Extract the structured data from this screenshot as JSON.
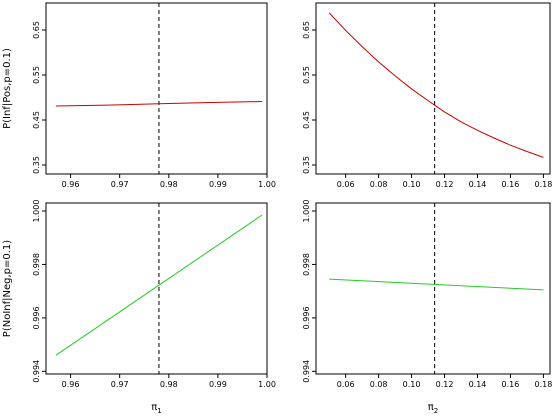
{
  "chart_data": [
    {
      "type": "line",
      "panel": "top-left",
      "xlabel": "",
      "ylabel": "P(Inf|Pos,p=0.1)",
      "xlim": [
        0.955,
        1.0
      ],
      "ylim": [
        0.33,
        0.71
      ],
      "xticks": [
        "0.96",
        "0.97",
        "0.98",
        "0.99",
        "1.00"
      ],
      "xtick_values": [
        0.96,
        0.97,
        0.98,
        0.99,
        1.0
      ],
      "yticks": [
        "0.35",
        "0.45",
        "0.55",
        "0.65"
      ],
      "ytick_values": [
        0.35,
        0.45,
        0.55,
        0.65
      ],
      "vline": 0.978,
      "series": [
        {
          "color": "#cc0000",
          "x": [
            0.957,
            0.9675,
            0.978,
            0.9885,
            0.999
          ],
          "y": [
            0.481,
            0.483,
            0.486,
            0.489,
            0.491
          ]
        }
      ]
    },
    {
      "type": "line",
      "panel": "top-right",
      "xlabel": "",
      "ylabel": "",
      "xlim": [
        0.042,
        0.184
      ],
      "ylim": [
        0.33,
        0.71
      ],
      "xticks": [
        "0.06",
        "0.08",
        "0.10",
        "0.12",
        "0.14",
        "0.16",
        "0.18"
      ],
      "xtick_values": [
        0.06,
        0.08,
        0.1,
        0.12,
        0.14,
        0.16,
        0.18
      ],
      "yticks": [
        "0.35",
        "0.45",
        "0.55",
        "0.65"
      ],
      "ytick_values": [
        0.35,
        0.45,
        0.55,
        0.65
      ],
      "vline": 0.114,
      "series": [
        {
          "color": "#cc0000",
          "x": [
            0.05,
            0.06,
            0.07,
            0.08,
            0.09,
            0.1,
            0.11,
            0.114,
            0.12,
            0.13,
            0.14,
            0.15,
            0.16,
            0.17,
            0.18
          ],
          "y": [
            0.688,
            0.649,
            0.613,
            0.579,
            0.548,
            0.519,
            0.493,
            0.483,
            0.468,
            0.446,
            0.427,
            0.41,
            0.394,
            0.38,
            0.367
          ]
        }
      ]
    },
    {
      "type": "line",
      "panel": "bottom-left",
      "xlabel": "π1",
      "ylabel": "P(NoInf|Neg,p=0.1)",
      "xlim": [
        0.955,
        1.0
      ],
      "ylim": [
        0.9939,
        1.0003
      ],
      "xticks": [
        "0.96",
        "0.97",
        "0.98",
        "0.99",
        "1.00"
      ],
      "xtick_values": [
        0.96,
        0.97,
        0.98,
        0.99,
        1.0
      ],
      "yticks": [
        "0.994",
        "0.996",
        "0.998",
        "1.000"
      ],
      "ytick_values": [
        0.994,
        0.996,
        0.998,
        1.0
      ],
      "vline": 0.978,
      "series": [
        {
          "color": "#22cc22",
          "x": [
            0.957,
            0.999
          ],
          "y": [
            0.9946,
            0.99985
          ]
        }
      ]
    },
    {
      "type": "line",
      "panel": "bottom-right",
      "xlabel": "π2",
      "ylabel": "",
      "xlim": [
        0.042,
        0.184
      ],
      "ylim": [
        0.9939,
        1.0003
      ],
      "xticks": [
        "0.06",
        "0.08",
        "0.10",
        "0.12",
        "0.14",
        "0.16",
        "0.18"
      ],
      "xtick_values": [
        0.06,
        0.08,
        0.1,
        0.12,
        0.14,
        0.16,
        0.18
      ],
      "yticks": [
        "0.994",
        "0.996",
        "0.998",
        "1.000"
      ],
      "ytick_values": [
        0.994,
        0.996,
        0.998,
        1.0
      ],
      "vline": 0.114,
      "series": [
        {
          "color": "#22cc22",
          "x": [
            0.05,
            0.18
          ],
          "y": [
            0.99745,
            0.99705
          ]
        }
      ]
    }
  ]
}
